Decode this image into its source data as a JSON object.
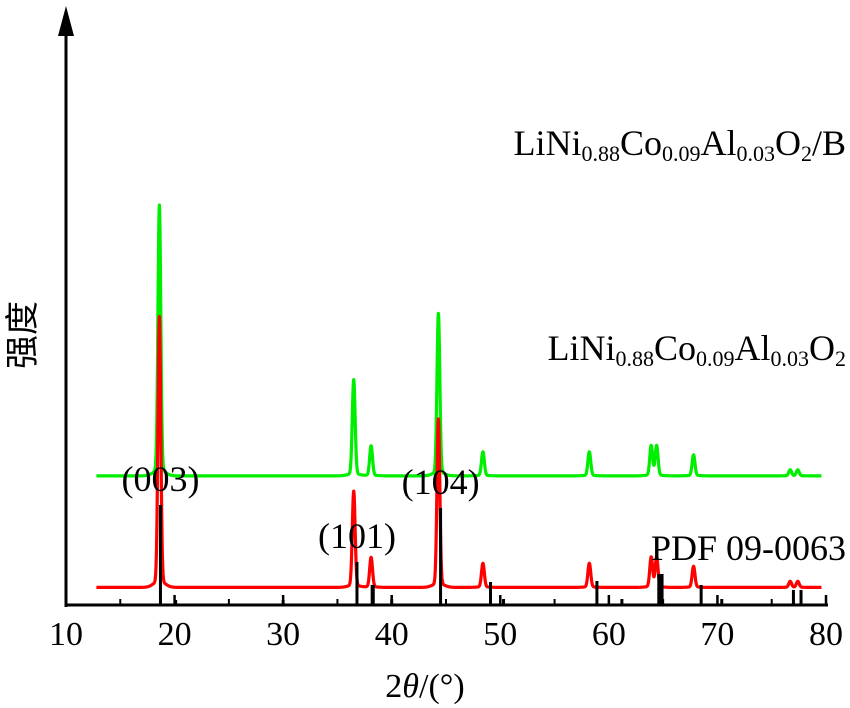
{
  "chart_data": {
    "type": "line",
    "xlabel": {
      "prefix": "2",
      "italic": "θ",
      "suffix": "/(°)"
    },
    "ylabel": "强度",
    "xlim": [
      10,
      80
    ],
    "xticks": [
      10,
      20,
      30,
      40,
      50,
      60,
      70,
      80
    ],
    "xtick_labels": [
      "10",
      "20",
      "30",
      "40",
      "50",
      "60",
      "70",
      "80"
    ],
    "y_arrow": true,
    "series": [
      {
        "name_parts": [
          {
            "t": "LiNi",
            "sub": false
          },
          {
            "t": "0.88",
            "sub": true
          },
          {
            "t": "Co",
            "sub": false
          },
          {
            "t": "0.09",
            "sub": true
          },
          {
            "t": "Al",
            "sub": false
          },
          {
            "t": "0.03",
            "sub": true
          },
          {
            "t": "O",
            "sub": false
          },
          {
            "t": "2",
            "sub": true
          },
          {
            "t": "/B",
            "sub": false
          }
        ],
        "color": "#00ee00",
        "baseline": 0.22,
        "peaks": [
          {
            "x": 18.6,
            "h": 0.45
          },
          {
            "x": 36.5,
            "h": 0.16
          },
          {
            "x": 38.1,
            "h": 0.05
          },
          {
            "x": 44.3,
            "h": 0.27
          },
          {
            "x": 48.4,
            "h": 0.04
          },
          {
            "x": 58.2,
            "h": 0.04
          },
          {
            "x": 63.9,
            "h": 0.05
          },
          {
            "x": 64.4,
            "h": 0.05
          },
          {
            "x": 67.8,
            "h": 0.035
          },
          {
            "x": 76.7,
            "h": 0.01
          },
          {
            "x": 77.4,
            "h": 0.01
          }
        ]
      },
      {
        "name_parts": [
          {
            "t": "LiNi",
            "sub": false
          },
          {
            "t": "0.88",
            "sub": true
          },
          {
            "t": "Co",
            "sub": false
          },
          {
            "t": "0.09",
            "sub": true
          },
          {
            "t": "Al",
            "sub": false
          },
          {
            "t": "0.03",
            "sub": true
          },
          {
            "t": "O",
            "sub": false
          },
          {
            "t": "2",
            "sub": true
          }
        ],
        "color": "#ff0000",
        "baseline": 0.03,
        "peaks": [
          {
            "x": 18.6,
            "h": 0.45
          },
          {
            "x": 36.5,
            "h": 0.16
          },
          {
            "x": 38.1,
            "h": 0.05
          },
          {
            "x": 44.3,
            "h": 0.28
          },
          {
            "x": 48.4,
            "h": 0.04
          },
          {
            "x": 58.2,
            "h": 0.04
          },
          {
            "x": 63.9,
            "h": 0.05
          },
          {
            "x": 64.4,
            "h": 0.05
          },
          {
            "x": 67.8,
            "h": 0.035
          },
          {
            "x": 76.7,
            "h": 0.01
          },
          {
            "x": 77.4,
            "h": 0.01
          }
        ]
      }
    ],
    "reference": {
      "name": "PDF 09-0063",
      "color": "#000000",
      "lines": [
        {
          "x": 18.7,
          "h": 100,
          "label": "(003)"
        },
        {
          "x": 20.1,
          "h": 5
        },
        {
          "x": 30.0,
          "h": 5
        },
        {
          "x": 36.8,
          "h": 43,
          "label": "(101)"
        },
        {
          "x": 38.2,
          "h": 20
        },
        {
          "x": 38.3,
          "h": 20
        },
        {
          "x": 40.0,
          "h": 6
        },
        {
          "x": 44.5,
          "h": 97,
          "label": "(104)"
        },
        {
          "x": 49.1,
          "h": 23
        },
        {
          "x": 50.3,
          "h": 6
        },
        {
          "x": 58.9,
          "h": 24
        },
        {
          "x": 61.2,
          "h": 6
        },
        {
          "x": 64.6,
          "h": 31
        },
        {
          "x": 64.8,
          "h": 31
        },
        {
          "x": 64.9,
          "h": 31
        },
        {
          "x": 68.5,
          "h": 20
        },
        {
          "x": 70.4,
          "h": 6
        },
        {
          "x": 77.0,
          "h": 15
        },
        {
          "x": 77.7,
          "h": 15
        }
      ]
    }
  }
}
